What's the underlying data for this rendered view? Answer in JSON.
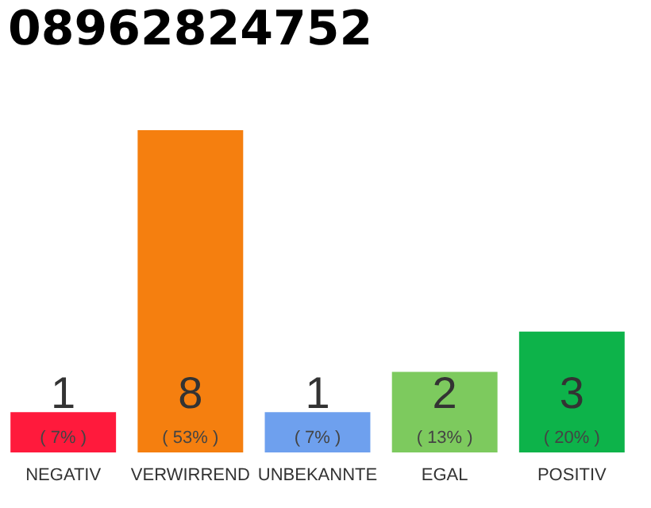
{
  "chart_data": {
    "type": "bar",
    "title": "08962824752",
    "categories": [
      "NEGATIV",
      "VERWIRREND",
      "UNBEKANNTE",
      "EGAL",
      "POSITIV"
    ],
    "values": [
      1,
      8,
      1,
      2,
      3
    ],
    "colors": [
      "#ff1a3c",
      "#f57f0f",
      "#6ea0ee",
      "#7dca5e",
      "#0db34a"
    ],
    "data_labels": true,
    "annotations": [
      "( 7% )",
      "( 53% )",
      "( 7% )",
      "( 13% )",
      "( 20% )"
    ],
    "tick_labels": "x"
  }
}
